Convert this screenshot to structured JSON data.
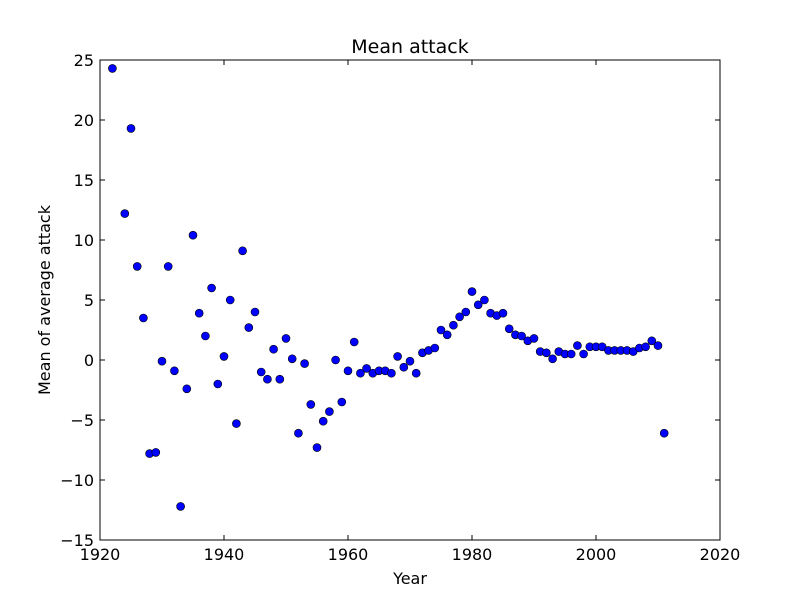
{
  "chart_data": {
    "type": "scatter",
    "title": "Mean attack",
    "xlabel": "Year",
    "ylabel": "Mean of average attack",
    "xlim": [
      1920,
      2020
    ],
    "ylim": [
      -15,
      25
    ],
    "xticks": [
      "1920",
      "1940",
      "1960",
      "1980",
      "2000",
      "2020"
    ],
    "yticks": [
      "25",
      "20",
      "15",
      "10",
      "5",
      "0",
      "−5",
      "−10",
      "−15"
    ],
    "grid": false,
    "marker_color": "#0000ff",
    "points": [
      [
        1922,
        24.3
      ],
      [
        1924,
        12.2
      ],
      [
        1925,
        19.3
      ],
      [
        1926,
        7.8
      ],
      [
        1927,
        3.5
      ],
      [
        1928,
        -7.8
      ],
      [
        1929,
        -7.7
      ],
      [
        1930,
        -0.1
      ],
      [
        1931,
        7.8
      ],
      [
        1932,
        -0.9
      ],
      [
        1933,
        -12.2
      ],
      [
        1934,
        -2.4
      ],
      [
        1935,
        10.4
      ],
      [
        1936,
        3.9
      ],
      [
        1937,
        2.0
      ],
      [
        1938,
        6.0
      ],
      [
        1939,
        -2.0
      ],
      [
        1940,
        0.3
      ],
      [
        1941,
        5.0
      ],
      [
        1942,
        -5.3
      ],
      [
        1943,
        9.1
      ],
      [
        1944,
        2.7
      ],
      [
        1945,
        4.0
      ],
      [
        1946,
        -1.0
      ],
      [
        1947,
        -1.6
      ],
      [
        1948,
        0.9
      ],
      [
        1949,
        -1.6
      ],
      [
        1950,
        1.8
      ],
      [
        1951,
        0.1
      ],
      [
        1952,
        -6.1
      ],
      [
        1953,
        -0.3
      ],
      [
        1954,
        -3.7
      ],
      [
        1955,
        -7.3
      ],
      [
        1956,
        -5.1
      ],
      [
        1957,
        -4.3
      ],
      [
        1958,
        0.0
      ],
      [
        1959,
        -3.5
      ],
      [
        1960,
        -0.9
      ],
      [
        1961,
        1.5
      ],
      [
        1962,
        -1.1
      ],
      [
        1963,
        -0.7
      ],
      [
        1964,
        -1.1
      ],
      [
        1965,
        -0.9
      ],
      [
        1966,
        -0.9
      ],
      [
        1967,
        -1.1
      ],
      [
        1968,
        0.3
      ],
      [
        1969,
        -0.6
      ],
      [
        1970,
        -0.1
      ],
      [
        1971,
        -1.1
      ],
      [
        1972,
        0.6
      ],
      [
        1973,
        0.8
      ],
      [
        1974,
        1.0
      ],
      [
        1975,
        2.5
      ],
      [
        1976,
        2.1
      ],
      [
        1977,
        2.9
      ],
      [
        1978,
        3.6
      ],
      [
        1979,
        4.0
      ],
      [
        1980,
        5.7
      ],
      [
        1981,
        4.6
      ],
      [
        1982,
        5.0
      ],
      [
        1983,
        3.9
      ],
      [
        1984,
        3.7
      ],
      [
        1985,
        3.9
      ],
      [
        1986,
        2.6
      ],
      [
        1987,
        2.1
      ],
      [
        1988,
        2.0
      ],
      [
        1989,
        1.6
      ],
      [
        1990,
        1.8
      ],
      [
        1991,
        0.7
      ],
      [
        1992,
        0.6
      ],
      [
        1993,
        0.1
      ],
      [
        1994,
        0.7
      ],
      [
        1995,
        0.5
      ],
      [
        1996,
        0.5
      ],
      [
        1997,
        1.2
      ],
      [
        1998,
        0.5
      ],
      [
        1999,
        1.1
      ],
      [
        2000,
        1.1
      ],
      [
        2001,
        1.1
      ],
      [
        2002,
        0.8
      ],
      [
        2003,
        0.8
      ],
      [
        2004,
        0.8
      ],
      [
        2005,
        0.8
      ],
      [
        2006,
        0.7
      ],
      [
        2007,
        1.0
      ],
      [
        2008,
        1.1
      ],
      [
        2009,
        1.6
      ],
      [
        2010,
        1.2
      ],
      [
        2011,
        -6.1
      ]
    ]
  }
}
